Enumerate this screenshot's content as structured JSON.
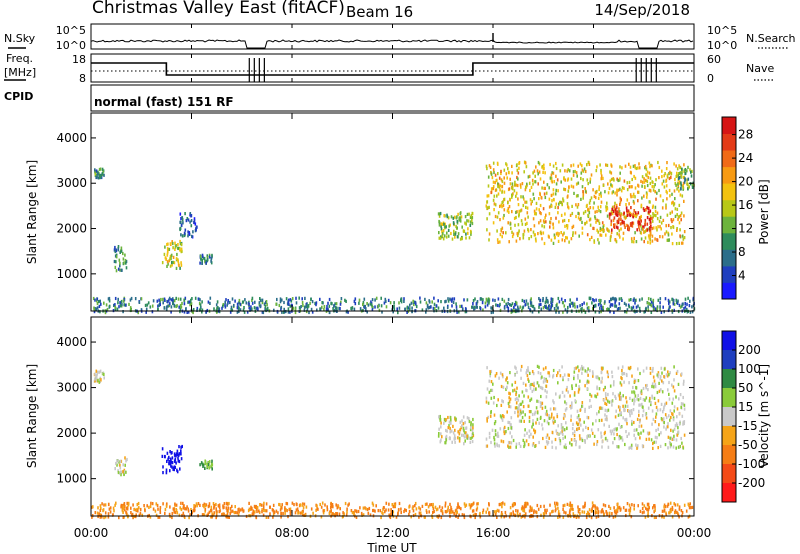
{
  "header": {
    "title": "Christmas Valley East (fitACF)",
    "beam": "Beam 16",
    "date": "14/Sep/2018"
  },
  "time_axis": {
    "label": "Time UT",
    "ticks": [
      "00:00",
      "04:00",
      "08:00",
      "12:00",
      "16:00",
      "20:00",
      "00:00"
    ],
    "tick_hours": [
      0,
      4,
      8,
      12,
      16,
      20,
      24
    ],
    "xlim": [
      0,
      24
    ]
  },
  "status_panels": {
    "nsky": {
      "label": "N.Sky",
      "ticks": [
        "10^5",
        "10^0"
      ],
      "right_label": "N.Search",
      "right_ticks": [
        "10^5",
        "10^0"
      ]
    },
    "freq": {
      "label_line1": "Freq.",
      "label_line2": "[MHz]",
      "ticks": [
        "18",
        "8"
      ],
      "right_label": "Nave",
      "right_ticks": [
        "60",
        "0"
      ]
    },
    "cpid": {
      "label": "CPID",
      "value": "normal (fast) 151 RF"
    }
  },
  "colors": {
    "power": [
      "#1a1aff",
      "#1f3fbf",
      "#2b6e8a",
      "#2e8c5c",
      "#6cb33c",
      "#b8c817",
      "#f3c20f",
      "#f79a12",
      "#f06a17",
      "#e33a17",
      "#d61515"
    ],
    "velocity": [
      "#ff1a1a",
      "#f44a17",
      "#f57d15",
      "#f5a418",
      "#f3c934",
      "#c9c9c9",
      "#8acb3a",
      "#2f8a43",
      "#2a6e7a",
      "#1f3fbf",
      "#1010e6"
    ]
  },
  "chart_data": [
    {
      "type": "heatmap",
      "title": "Power",
      "ylabel": "Slant Range [km]",
      "yticks": [
        "1000",
        "2000",
        "3000",
        "4000"
      ],
      "ylim": [
        180,
        4550
      ],
      "xlim": [
        0,
        24
      ],
      "colorbar": {
        "label": "Power [dB]",
        "ticks": [
          "4",
          "8",
          "12",
          "16",
          "20",
          "24",
          "28"
        ],
        "range": [
          0,
          31
        ]
      },
      "regions": [
        {
          "t_start": 0.1,
          "t_end": 0.5,
          "r_start": 3150,
          "r_end": 3350,
          "value": 10
        },
        {
          "t_start": 0.9,
          "t_end": 1.4,
          "r_start": 1100,
          "r_end": 1650,
          "value": 9
        },
        {
          "t_start": 2.8,
          "t_end": 3.6,
          "r_start": 1150,
          "r_end": 1750,
          "value": 16
        },
        {
          "t_start": 3.5,
          "t_end": 4.2,
          "r_start": 1850,
          "r_end": 2400,
          "value": 6
        },
        {
          "t_start": 4.3,
          "t_end": 4.8,
          "r_start": 1250,
          "r_end": 1450,
          "value": 8
        },
        {
          "t_start": 13.8,
          "t_end": 15.2,
          "r_start": 1800,
          "r_end": 2400,
          "value": 14
        },
        {
          "t_start": 15.7,
          "t_end": 23.6,
          "r_start": 1700,
          "r_end": 3500,
          "value": 18
        },
        {
          "t_start": 20.6,
          "t_end": 22.3,
          "r_start": 2000,
          "r_end": 2500,
          "value": 27
        },
        {
          "t_start": 23.3,
          "t_end": 24.0,
          "r_start": 2900,
          "r_end": 3400,
          "value": 12
        },
        {
          "t_start": 0.0,
          "t_end": 24.0,
          "r_start": 180,
          "r_end": 500,
          "value": 8
        }
      ]
    },
    {
      "type": "heatmap",
      "title": "Velocity",
      "ylabel": "Slant Range [km]",
      "yticks": [
        "1000",
        "2000",
        "3000",
        "4000"
      ],
      "ylim": [
        180,
        4550
      ],
      "xlim": [
        0,
        24
      ],
      "colorbar": {
        "label": "Velocity [m s^-1]",
        "ticks": [
          "200",
          "100",
          "50",
          "15",
          "-15",
          "-50",
          "-100",
          "-200"
        ]
      },
      "regions": [
        {
          "t_start": 0.1,
          "t_end": 0.5,
          "r_start": 3150,
          "r_end": 3400,
          "value": 0
        },
        {
          "t_start": 0.9,
          "t_end": 1.4,
          "r_start": 1100,
          "r_end": 1500,
          "value": 0
        },
        {
          "t_start": 2.8,
          "t_end": 3.6,
          "r_start": 1150,
          "r_end": 1750,
          "value": 250
        },
        {
          "t_start": 4.3,
          "t_end": 4.8,
          "r_start": 1250,
          "r_end": 1450,
          "value": 40
        },
        {
          "t_start": 13.8,
          "t_end": 15.2,
          "r_start": 1800,
          "r_end": 2400,
          "value": 0
        },
        {
          "t_start": 15.7,
          "t_end": 23.6,
          "r_start": 1700,
          "r_end": 3500,
          "value": 0
        },
        {
          "t_start": 0.0,
          "t_end": 24.0,
          "r_start": 180,
          "r_end": 500,
          "value": -60
        }
      ]
    }
  ]
}
